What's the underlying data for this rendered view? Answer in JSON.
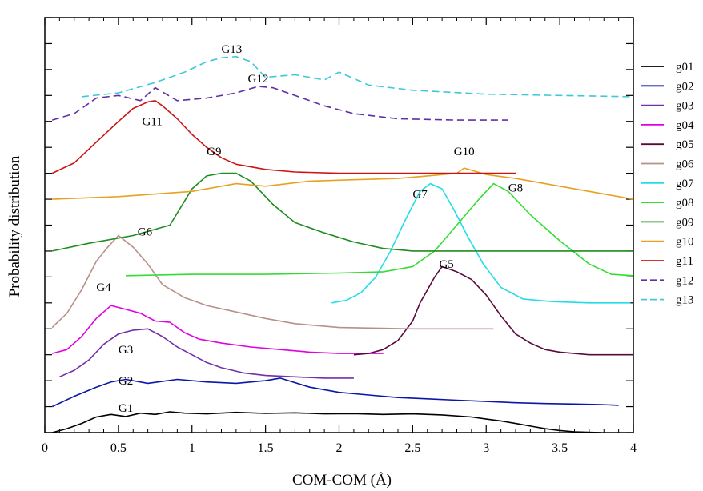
{
  "chart_data": {
    "type": "line",
    "xlabel": "COM-COM (Å)",
    "ylabel": "Probability distribution",
    "xlim": [
      0,
      4
    ],
    "xticks": [
      "0",
      "0.5",
      "1",
      "1.5",
      "2",
      "2.5",
      "3",
      "3.5",
      "4"
    ],
    "yticks_labeled": false,
    "grid": false,
    "legend_position": "right",
    "series": [
      {
        "name": "g01",
        "color": "#000000",
        "dash": "solid",
        "curve_label": "G1",
        "label_at": [
          0.55,
          0.8
        ],
        "x": [
          0.05,
          0.15,
          0.25,
          0.35,
          0.45,
          0.55,
          0.65,
          0.75,
          0.85,
          0.95,
          1.1,
          1.3,
          1.5,
          1.7,
          1.9,
          2.1,
          2.3,
          2.5,
          2.7,
          2.9,
          3.0,
          3.1,
          3.2,
          3.3,
          3.4,
          3.5,
          3.6,
          3.78
        ],
        "y": [
          0.0,
          0.15,
          0.35,
          0.6,
          0.7,
          0.62,
          0.75,
          0.7,
          0.8,
          0.75,
          0.72,
          0.78,
          0.74,
          0.76,
          0.72,
          0.73,
          0.7,
          0.72,
          0.68,
          0.6,
          0.52,
          0.45,
          0.35,
          0.25,
          0.15,
          0.08,
          0.03,
          0.0
        ]
      },
      {
        "name": "g02",
        "color": "#0a16a8",
        "dash": "solid",
        "curve_label": "G2",
        "label_at": [
          0.55,
          1.85
        ],
        "x": [
          0.05,
          0.2,
          0.35,
          0.45,
          0.55,
          0.7,
          0.9,
          1.1,
          1.3,
          1.5,
          1.6,
          1.8,
          2.0,
          2.2,
          2.4,
          2.6,
          2.8,
          3.0,
          3.2,
          3.4,
          3.6,
          3.78,
          3.9
        ],
        "y": [
          1.0,
          1.4,
          1.75,
          1.95,
          2.05,
          1.9,
          2.05,
          1.95,
          1.9,
          2.0,
          2.1,
          1.75,
          1.55,
          1.45,
          1.35,
          1.3,
          1.25,
          1.2,
          1.15,
          1.12,
          1.1,
          1.08,
          1.05
        ]
      },
      {
        "name": "g03",
        "color": "#7030a8",
        "dash": "solid",
        "curve_label": "G3",
        "label_at": [
          0.55,
          3.05
        ],
        "x": [
          0.1,
          0.2,
          0.3,
          0.4,
          0.5,
          0.6,
          0.7,
          0.8,
          0.9,
          1.0,
          1.1,
          1.2,
          1.35,
          1.5,
          1.7,
          1.9,
          2.1
        ],
        "y": [
          2.15,
          2.4,
          2.8,
          3.4,
          3.8,
          3.95,
          4.0,
          3.7,
          3.3,
          3.0,
          2.7,
          2.5,
          2.3,
          2.2,
          2.15,
          2.1,
          2.1
        ]
      },
      {
        "name": "g04",
        "color": "#e000e0",
        "dash": "solid",
        "curve_label": "G4",
        "label_at": [
          0.4,
          5.45
        ],
        "x": [
          0.05,
          0.15,
          0.25,
          0.35,
          0.45,
          0.55,
          0.65,
          0.75,
          0.85,
          0.95,
          1.05,
          1.2,
          1.4,
          1.6,
          1.8,
          2.0,
          2.3
        ],
        "y": [
          3.05,
          3.2,
          3.7,
          4.4,
          4.9,
          4.75,
          4.6,
          4.3,
          4.25,
          3.85,
          3.6,
          3.45,
          3.3,
          3.2,
          3.1,
          3.05,
          3.05
        ]
      },
      {
        "name": "g05",
        "color": "#5a0a3a",
        "dash": "solid",
        "curve_label": "G5",
        "label_at": [
          2.73,
          6.35
        ],
        "x": [
          2.1,
          2.2,
          2.3,
          2.4,
          2.5,
          2.55,
          2.6,
          2.65,
          2.7,
          2.75,
          2.8,
          2.9,
          3.0,
          3.1,
          3.2,
          3.3,
          3.4,
          3.5,
          3.7,
          4.0
        ],
        "y": [
          3.0,
          3.05,
          3.2,
          3.55,
          4.3,
          5.0,
          5.5,
          6.0,
          6.4,
          6.3,
          6.2,
          5.9,
          5.3,
          4.5,
          3.8,
          3.45,
          3.2,
          3.1,
          3.0,
          3.0
        ]
      },
      {
        "name": "g06",
        "color": "#b89088",
        "dash": "solid",
        "curve_label": "G6",
        "label_at": [
          0.68,
          7.6
        ],
        "x": [
          0.05,
          0.15,
          0.25,
          0.35,
          0.42,
          0.5,
          0.6,
          0.7,
          0.8,
          0.95,
          1.1,
          1.3,
          1.5,
          1.7,
          2.0,
          2.5,
          3.05
        ],
        "y": [
          4.05,
          4.6,
          5.5,
          6.6,
          7.1,
          7.6,
          7.15,
          6.5,
          5.7,
          5.2,
          4.9,
          4.65,
          4.4,
          4.2,
          4.05,
          4.0,
          4.0
        ]
      },
      {
        "name": "g07",
        "color": "#22dde8",
        "dash": "solid",
        "curve_label": "G7",
        "label_at": [
          2.55,
          9.05
        ],
        "x": [
          1.95,
          2.05,
          2.15,
          2.25,
          2.35,
          2.45,
          2.55,
          2.62,
          2.7,
          2.78,
          2.88,
          2.98,
          3.1,
          3.25,
          3.45,
          3.7,
          3.98
        ],
        "y": [
          5.0,
          5.1,
          5.4,
          6.0,
          7.0,
          8.2,
          9.3,
          9.6,
          9.4,
          8.6,
          7.5,
          6.5,
          5.6,
          5.15,
          5.05,
          5.0,
          5.0
        ]
      },
      {
        "name": "g08",
        "color": "#33dd33",
        "dash": "solid",
        "curve_label": "G8",
        "label_at": [
          3.2,
          9.3
        ],
        "x": [
          0.55,
          1.0,
          1.5,
          2.0,
          2.3,
          2.5,
          2.65,
          2.8,
          2.95,
          3.05,
          3.15,
          3.3,
          3.5,
          3.7,
          3.85,
          4.0
        ],
        "y": [
          6.05,
          6.1,
          6.1,
          6.15,
          6.2,
          6.4,
          7.0,
          8.0,
          9.0,
          9.6,
          9.3,
          8.4,
          7.4,
          6.5,
          6.1,
          6.05
        ]
      },
      {
        "name": "g09",
        "color": "#1e8c1e",
        "dash": "solid",
        "curve_label": "G9",
        "label_at": [
          1.15,
          10.7
        ],
        "x": [
          0.05,
          0.3,
          0.6,
          0.85,
          1.0,
          1.1,
          1.2,
          1.3,
          1.4,
          1.55,
          1.7,
          1.9,
          2.1,
          2.3,
          2.5,
          3.0,
          3.5,
          4.0
        ],
        "y": [
          7.0,
          7.3,
          7.6,
          8.0,
          9.4,
          9.9,
          10.0,
          10.0,
          9.7,
          8.8,
          8.1,
          7.7,
          7.35,
          7.1,
          7.0,
          7.0,
          7.0,
          7.0
        ]
      },
      {
        "name": "g10",
        "color": "#e8a020",
        "dash": "solid",
        "curve_label": "G10",
        "label_at": [
          2.85,
          10.7
        ],
        "x": [
          0.05,
          0.5,
          1.0,
          1.3,
          1.5,
          1.8,
          2.1,
          2.4,
          2.6,
          2.8,
          2.85,
          3.0,
          3.2,
          3.5,
          3.8,
          4.0
        ],
        "y": [
          9.0,
          9.1,
          9.3,
          9.6,
          9.5,
          9.7,
          9.75,
          9.8,
          9.9,
          10.0,
          10.2,
          9.95,
          9.8,
          9.5,
          9.2,
          9.0
        ]
      },
      {
        "name": "g11",
        "color": "#cc1414",
        "dash": "solid",
        "curve_label": "G11",
        "label_at": [
          0.73,
          11.85
        ],
        "x": [
          0.05,
          0.2,
          0.35,
          0.5,
          0.6,
          0.7,
          0.75,
          0.8,
          0.9,
          1.0,
          1.1,
          1.2,
          1.3,
          1.5,
          1.7,
          2.0,
          2.5,
          3.2
        ],
        "y": [
          10.0,
          10.4,
          11.2,
          12.0,
          12.5,
          12.75,
          12.8,
          12.6,
          12.1,
          11.5,
          11.0,
          10.6,
          10.35,
          10.15,
          10.05,
          10.0,
          10.0,
          10.0
        ]
      },
      {
        "name": "g12",
        "color": "#6030a0",
        "dash": "dashed",
        "curve_label": "G12",
        "label_at": [
          1.45,
          13.5
        ],
        "x": [
          0.05,
          0.2,
          0.35,
          0.5,
          0.65,
          0.75,
          0.9,
          1.1,
          1.3,
          1.45,
          1.55,
          1.7,
          1.9,
          2.1,
          2.4,
          2.8,
          3.15
        ],
        "y": [
          12.05,
          12.3,
          12.9,
          13.0,
          12.8,
          13.3,
          12.8,
          12.9,
          13.1,
          13.35,
          13.3,
          13.0,
          12.6,
          12.3,
          12.1,
          12.05,
          12.05
        ]
      },
      {
        "name": "g13",
        "color": "#40c8d8",
        "dash": "dashed",
        "curve_label": "G13",
        "label_at": [
          1.27,
          14.65
        ],
        "x": [
          0.25,
          0.5,
          0.75,
          0.95,
          1.1,
          1.2,
          1.3,
          1.4,
          1.5,
          1.7,
          1.9,
          2.0,
          2.2,
          2.5,
          3.0,
          3.5,
          4.0
        ],
        "y": [
          12.95,
          13.1,
          13.5,
          13.9,
          14.3,
          14.45,
          14.5,
          14.3,
          13.7,
          13.8,
          13.6,
          13.9,
          13.4,
          13.2,
          13.05,
          13.0,
          12.95
        ]
      }
    ]
  }
}
